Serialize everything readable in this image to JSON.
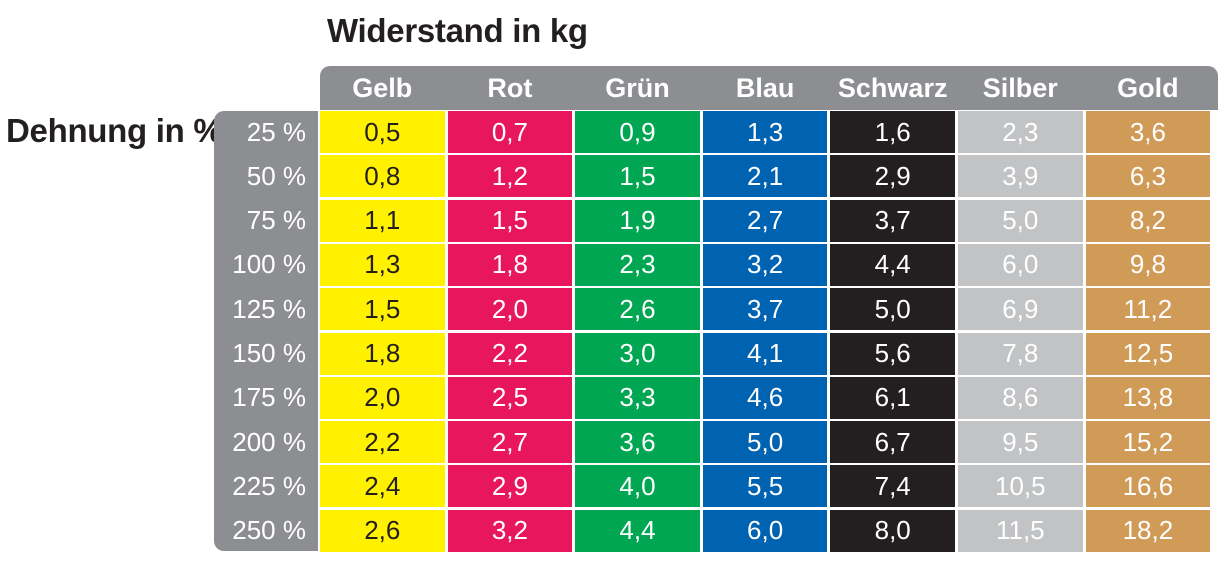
{
  "chart_data": {
    "type": "table",
    "title": "Widerstand in kg",
    "ylabel": "Dehnung in %",
    "columns": [
      {
        "name": "Gelb",
        "color": "#fff100",
        "text_color": "#231f20"
      },
      {
        "name": "Rot",
        "color": "#e8175d",
        "text_color": "#ffffff"
      },
      {
        "name": "Grün",
        "color": "#00a651",
        "text_color": "#ffffff"
      },
      {
        "name": "Blau",
        "color": "#0063b1",
        "text_color": "#ffffff"
      },
      {
        "name": "Schwarz",
        "color": "#231f20",
        "text_color": "#ffffff"
      },
      {
        "name": "Silber",
        "color": "#c2c3c5",
        "text_color": "#ffffff"
      },
      {
        "name": "Gold",
        "color": "#d09a57",
        "text_color": "#ffffff"
      }
    ],
    "rows": [
      "25 %",
      "50 %",
      "75 %",
      "100 %",
      "125 %",
      "150 %",
      "175 %",
      "200 %",
      "225 %",
      "250 %"
    ],
    "values": [
      [
        "0,5",
        "0,7",
        "0,9",
        "1,3",
        "1,6",
        "2,3",
        "3,6"
      ],
      [
        "0,8",
        "1,2",
        "1,5",
        "2,1",
        "2,9",
        "3,9",
        "6,3"
      ],
      [
        "1,1",
        "1,5",
        "1,9",
        "2,7",
        "3,7",
        "5,0",
        "8,2"
      ],
      [
        "1,3",
        "1,8",
        "2,3",
        "3,2",
        "4,4",
        "6,0",
        "9,8"
      ],
      [
        "1,5",
        "2,0",
        "2,6",
        "3,7",
        "5,0",
        "6,9",
        "11,2"
      ],
      [
        "1,8",
        "2,2",
        "3,0",
        "4,1",
        "5,6",
        "7,8",
        "12,5"
      ],
      [
        "2,0",
        "2,5",
        "3,3",
        "4,6",
        "6,1",
        "8,6",
        "13,8"
      ],
      [
        "2,2",
        "2,7",
        "3,6",
        "5,0",
        "6,7",
        "9,5",
        "15,2"
      ],
      [
        "2,4",
        "2,9",
        "4,0",
        "5,5",
        "7,4",
        "10,5",
        "16,6"
      ],
      [
        "2,6",
        "3,2",
        "4,4",
        "6,0",
        "8,0",
        "11,5",
        "18,2"
      ]
    ]
  }
}
